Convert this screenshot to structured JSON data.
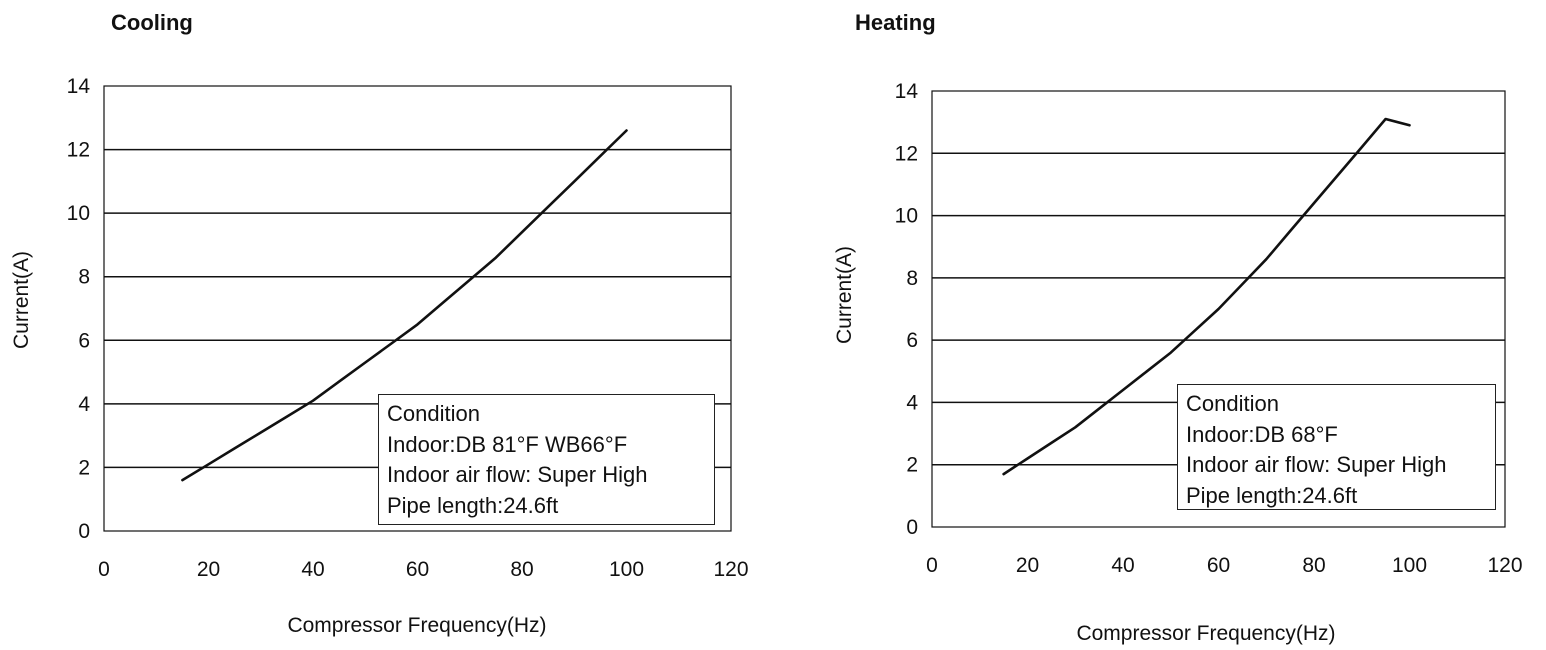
{
  "chart_data": [
    {
      "type": "line",
      "title": "Cooling",
      "xlabel": "Compressor Frequency(Hz)",
      "ylabel": "Current(A)",
      "xlim": [
        0,
        120
      ],
      "ylim": [
        0,
        14
      ],
      "xticks": [
        "0",
        "20",
        "40",
        "60",
        "80",
        "100",
        "120"
      ],
      "yticks": [
        "0",
        "2",
        "4",
        "6",
        "8",
        "10",
        "12",
        "14"
      ],
      "grid": "horizontal",
      "series": [
        {
          "x": [
            15,
            20,
            25,
            30,
            35,
            40,
            45,
            50,
            55,
            60,
            65,
            70,
            75,
            80,
            85,
            90,
            95,
            100
          ],
          "y": [
            1.6,
            2.1,
            2.6,
            3.1,
            3.6,
            4.1,
            4.7,
            5.3,
            5.9,
            6.5,
            7.2,
            7.9,
            8.6,
            9.4,
            10.2,
            11.0,
            11.8,
            12.6
          ]
        }
      ],
      "annotation": {
        "lines": [
          "Condition",
          "Indoor:DB 81°F WB66°F",
          "Indoor air flow: Super High",
          "Pipe length:24.6ft"
        ]
      }
    },
    {
      "type": "line",
      "title": "Heating",
      "xlabel": "Compressor Frequency(Hz)",
      "ylabel": "Current(A)",
      "xlim": [
        0,
        120
      ],
      "ylim": [
        0,
        14
      ],
      "xticks": [
        "0",
        "20",
        "40",
        "60",
        "80",
        "100",
        "120"
      ],
      "yticks": [
        "0",
        "2",
        "4",
        "6",
        "8",
        "10",
        "12",
        "14"
      ],
      "grid": "horizontal",
      "series": [
        {
          "x": [
            15,
            20,
            25,
            30,
            35,
            40,
            45,
            50,
            55,
            60,
            65,
            70,
            75,
            80,
            85,
            90,
            95,
            100
          ],
          "y": [
            1.7,
            2.2,
            2.7,
            3.2,
            3.8,
            4.4,
            5.0,
            5.6,
            6.3,
            7.0,
            7.8,
            8.6,
            9.5,
            10.4,
            11.3,
            12.2,
            13.1,
            12.9
          ]
        }
      ],
      "annotation": {
        "lines": [
          "Condition",
          "Indoor:DB 68°F",
          "Indoor air flow: Super High",
          "Pipe length:24.6ft"
        ]
      }
    }
  ]
}
